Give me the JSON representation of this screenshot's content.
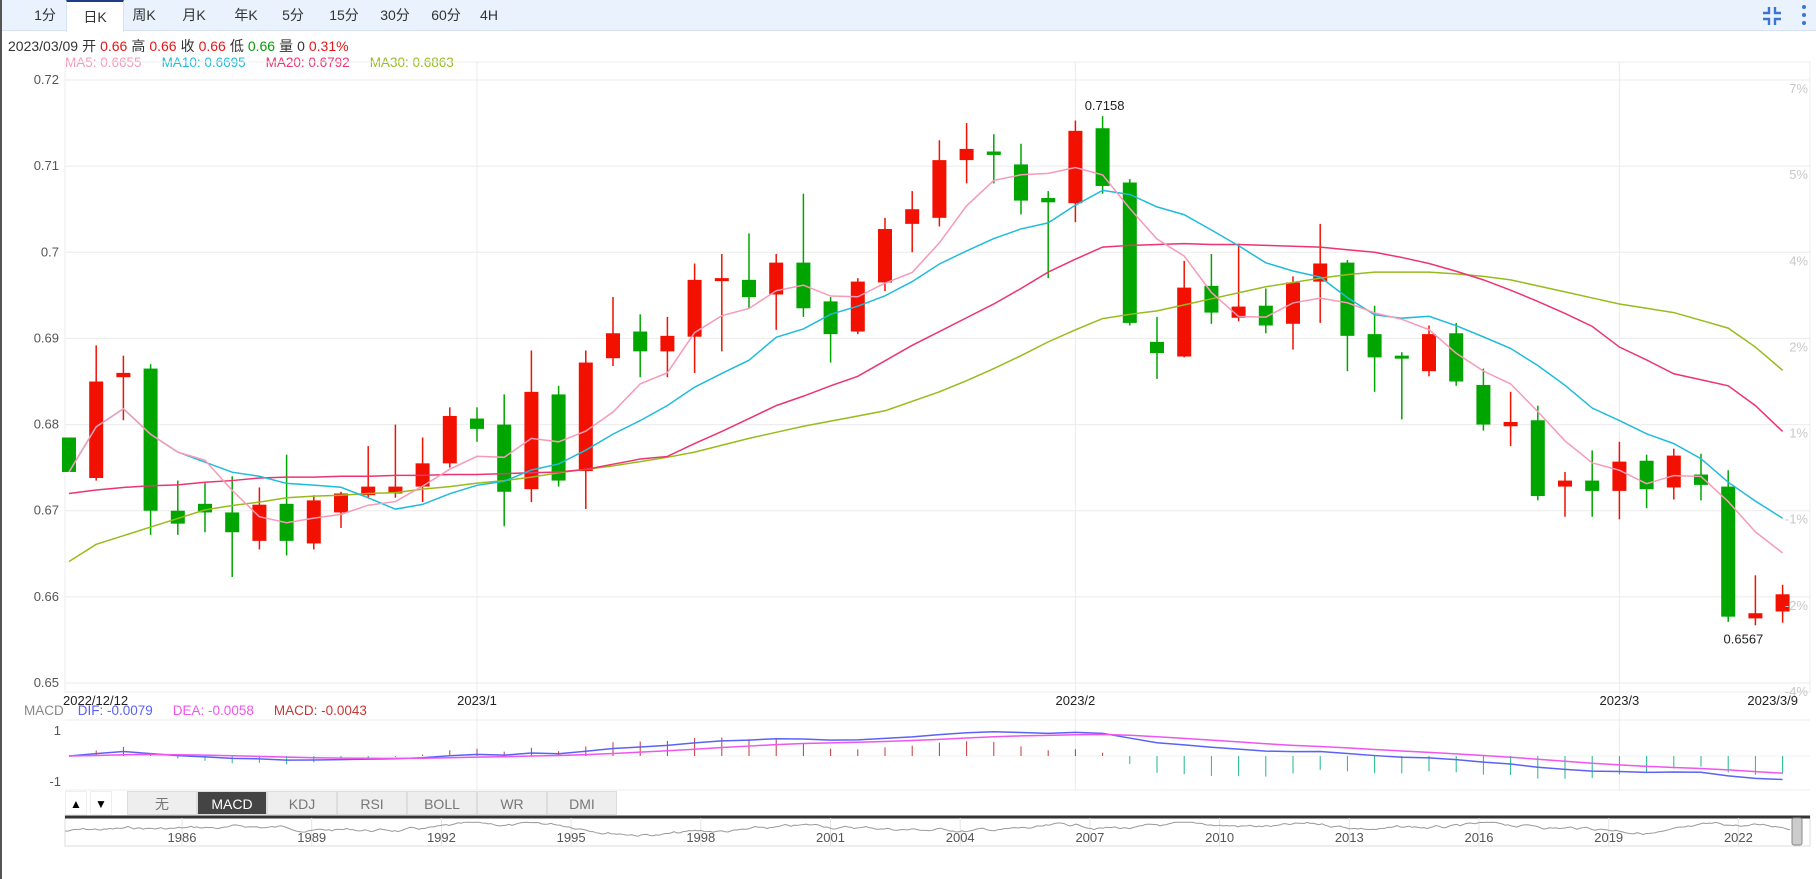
{
  "tabs": [
    {
      "label": "1分"
    },
    {
      "label": "日K",
      "active": true
    },
    {
      "label": "周K"
    },
    {
      "label": "月K"
    },
    {
      "label": "年K"
    },
    {
      "label": "5分"
    },
    {
      "label": "15分"
    },
    {
      "label": "30分"
    },
    {
      "label": "60分"
    },
    {
      "label": "4H"
    }
  ],
  "toolbar": {
    "icons": [
      "compress-icon",
      "more-vertical-icon"
    ]
  },
  "info": {
    "date": "2023/03/09",
    "open_label": "开",
    "open": "0.66",
    "high_label": "高",
    "high": "0.66",
    "close_label": "收",
    "close": "0.66",
    "low_label": "低",
    "low": "0.66",
    "volume_label": "量",
    "volume": "0",
    "change": "0.31%"
  },
  "ma_legend": {
    "ma5": "MA5: 0.6655",
    "ma10": "MA10: 0.6695",
    "ma20": "MA20: 0.6792",
    "ma30": "MA30: 0.6863"
  },
  "colors": {
    "up": "#f21100",
    "down": "#00a500",
    "ma5": "#f79ab8",
    "ma10": "#1fbbdc",
    "ma20": "#ec3470",
    "ma30": "#98bb1c",
    "dif": "#5a63f5",
    "dea": "#ef55ef",
    "macd": "#c83737"
  },
  "chart_data": {
    "type": "candlestick",
    "y_ticks": [
      "0.72",
      "0.71",
      "0.7",
      "0.69",
      "0.68",
      "0.67",
      "0.66",
      "0.65"
    ],
    "y_tick_values": [
      0.72,
      0.71,
      0.7,
      0.69,
      0.68,
      0.67,
      0.66,
      0.65
    ],
    "ylim": [
      0.65,
      0.72
    ],
    "pct_ticks": [
      "7%",
      "5%",
      "4%",
      "2%",
      "1%",
      "-1%",
      "-2%",
      "-4%"
    ],
    "x_labels": [
      {
        "label": "2022/12/12",
        "index": 0
      },
      {
        "label": "2023/1",
        "index": 15
      },
      {
        "label": "2023/2",
        "index": 37
      },
      {
        "label": "2023/3",
        "index": 57
      },
      {
        "label": "2023/3/9",
        "index": 63
      }
    ],
    "ohlc": [
      [
        0.6785,
        0.6785,
        0.6745,
        0.6745
      ],
      [
        0.6738,
        0.6892,
        0.6735,
        0.685
      ],
      [
        0.6855,
        0.688,
        0.6805,
        0.686
      ],
      [
        0.6865,
        0.687,
        0.6672,
        0.67
      ],
      [
        0.67,
        0.6735,
        0.6672,
        0.6685
      ],
      [
        0.6708,
        0.6732,
        0.6675,
        0.6698
      ],
      [
        0.6698,
        0.674,
        0.6623,
        0.6675
      ],
      [
        0.6665,
        0.6727,
        0.6655,
        0.6707
      ],
      [
        0.6708,
        0.6765,
        0.6648,
        0.6665
      ],
      [
        0.6662,
        0.6718,
        0.6655,
        0.6712
      ],
      [
        0.6698,
        0.6722,
        0.668,
        0.672
      ],
      [
        0.6718,
        0.6775,
        0.6715,
        0.6728
      ],
      [
        0.672,
        0.68,
        0.6715,
        0.6728
      ],
      [
        0.6728,
        0.6785,
        0.671,
        0.6755
      ],
      [
        0.6755,
        0.682,
        0.675,
        0.681
      ],
      [
        0.6807,
        0.682,
        0.678,
        0.6795
      ],
      [
        0.68,
        0.6835,
        0.6682,
        0.6722
      ],
      [
        0.6725,
        0.6886,
        0.671,
        0.6838
      ],
      [
        0.6835,
        0.6845,
        0.6728,
        0.6735
      ],
      [
        0.6746,
        0.6886,
        0.6702,
        0.6872
      ],
      [
        0.6877,
        0.6948,
        0.6868,
        0.6906
      ],
      [
        0.6908,
        0.6928,
        0.6855,
        0.6885
      ],
      [
        0.6885,
        0.6925,
        0.6855,
        0.6903
      ],
      [
        0.6902,
        0.6987,
        0.686,
        0.6968
      ],
      [
        0.6968,
        0.6998,
        0.6885,
        0.697
      ],
      [
        0.6968,
        0.7022,
        0.6935,
        0.6948
      ],
      [
        0.6951,
        0.6998,
        0.691,
        0.6988
      ],
      [
        0.6988,
        0.7068,
        0.6925,
        0.6935
      ],
      [
        0.6943,
        0.6948,
        0.6872,
        0.6905
      ],
      [
        0.6908,
        0.697,
        0.6905,
        0.6966
      ],
      [
        0.6965,
        0.704,
        0.6955,
        0.7027
      ],
      [
        0.7033,
        0.7071,
        0.7,
        0.705
      ],
      [
        0.704,
        0.713,
        0.703,
        0.7107
      ],
      [
        0.7107,
        0.715,
        0.708,
        0.712
      ],
      [
        0.7117,
        0.7137,
        0.708,
        0.7113
      ],
      [
        0.7102,
        0.7126,
        0.7044,
        0.706
      ],
      [
        0.7063,
        0.7071,
        0.697,
        0.7058
      ],
      [
        0.7057,
        0.7153,
        0.7035,
        0.7141
      ],
      [
        0.7144,
        0.7158,
        0.7068,
        0.7077
      ],
      [
        0.7081,
        0.7085,
        0.6915,
        0.6918
      ],
      [
        0.6896,
        0.6925,
        0.6853,
        0.6883
      ],
      [
        0.6879,
        0.699,
        0.6878,
        0.6959
      ],
      [
        0.6961,
        0.6998,
        0.6917,
        0.693
      ],
      [
        0.6924,
        0.701,
        0.692,
        0.6937
      ],
      [
        0.6938,
        0.6958,
        0.6906,
        0.6915
      ],
      [
        0.6917,
        0.6972,
        0.6887,
        0.6965
      ],
      [
        0.6966,
        0.7033,
        0.6918,
        0.6987
      ],
      [
        0.6988,
        0.6991,
        0.6862,
        0.6903
      ],
      [
        0.6905,
        0.6938,
        0.6838,
        0.6878
      ],
      [
        0.688,
        0.6884,
        0.6806,
        0.6878
      ],
      [
        0.6862,
        0.6915,
        0.6856,
        0.6905
      ],
      [
        0.6906,
        0.6918,
        0.6845,
        0.685
      ],
      [
        0.6846,
        0.6865,
        0.6793,
        0.68
      ],
      [
        0.6798,
        0.6838,
        0.6775,
        0.6803
      ],
      [
        0.6805,
        0.6822,
        0.6712,
        0.6717
      ],
      [
        0.6728,
        0.6745,
        0.6693,
        0.6735
      ],
      [
        0.6735,
        0.677,
        0.6693,
        0.6723
      ],
      [
        0.6723,
        0.678,
        0.669,
        0.6757
      ],
      [
        0.6758,
        0.6765,
        0.6703,
        0.6725
      ],
      [
        0.6727,
        0.6772,
        0.6713,
        0.6764
      ],
      [
        0.6742,
        0.6766,
        0.6712,
        0.673
      ],
      [
        0.6728,
        0.6747,
        0.6571,
        0.6577
      ],
      [
        0.6575,
        0.6625,
        0.6567,
        0.6581
      ],
      [
        0.6583,
        0.6614,
        0.657,
        0.6603
      ]
    ],
    "ma20": [
      0.672,
      0.6724,
      0.6727,
      0.6729,
      0.673,
      0.6733,
      0.6735,
      0.6738,
      0.6739,
      0.6739,
      0.674,
      0.674,
      0.6741,
      0.6741,
      0.6742,
      0.6742,
      0.6743,
      0.6744,
      0.6745,
      0.6748,
      0.6754,
      0.676,
      0.6763,
      0.6778,
      0.6792,
      0.6807,
      0.6822,
      0.6833,
      0.6845,
      0.6856,
      0.6874,
      0.6892,
      0.6908,
      0.6924,
      0.694,
      0.6958,
      0.6977,
      0.6992,
      0.7006,
      0.7008,
      0.7009,
      0.701,
      0.7009,
      0.7009,
      0.7008,
      0.7007,
      0.7006,
      0.7003,
      0.7,
      0.6994,
      0.6987,
      0.6978,
      0.6968,
      0.6956,
      0.6943,
      0.6929,
      0.6914,
      0.689,
      0.6875,
      0.6859,
      0.6852,
      0.6845,
      0.6822,
      0.6792
    ],
    "ma30": [
      0.6641,
      0.6661,
      0.6671,
      0.6681,
      0.6691,
      0.6701,
      0.6706,
      0.671,
      0.6715,
      0.6717,
      0.6718,
      0.672,
      0.6721,
      0.6725,
      0.6728,
      0.6732,
      0.6735,
      0.6739,
      0.6744,
      0.6748,
      0.6752,
      0.6757,
      0.6762,
      0.6768,
      0.6776,
      0.6784,
      0.6791,
      0.6798,
      0.6804,
      0.681,
      0.6816,
      0.6827,
      0.6838,
      0.6851,
      0.6865,
      0.688,
      0.6896,
      0.691,
      0.6923,
      0.6928,
      0.6932,
      0.6939,
      0.6946,
      0.6953,
      0.696,
      0.6965,
      0.697,
      0.6974,
      0.6977,
      0.6977,
      0.6977,
      0.6975,
      0.6972,
      0.6968,
      0.6961,
      0.6954,
      0.6947,
      0.694,
      0.6935,
      0.693,
      0.6921,
      0.6912,
      0.689,
      0.6863
    ],
    "annotations": {
      "high": "0.7158",
      "high_index": 38,
      "low": "0.6567",
      "low_index": 62
    }
  },
  "macd": {
    "name": "MACD",
    "dif": "DIF: -0.0079",
    "dea": "DEA: -0.0058",
    "macd": "MACD: -0.0043",
    "ticks": [
      "1",
      "-1"
    ]
  },
  "indicators": {
    "up": "▲",
    "down": "▼",
    "tabs": [
      {
        "label": "无"
      },
      {
        "label": "MACD",
        "active": true
      },
      {
        "label": "KDJ"
      },
      {
        "label": "RSI"
      },
      {
        "label": "BOLL"
      },
      {
        "label": "WR"
      },
      {
        "label": "DMI"
      }
    ]
  },
  "navigator": {
    "years": [
      "1986",
      "1989",
      "1992",
      "1995",
      "1998",
      "2001",
      "2004",
      "2007",
      "2010",
      "2013",
      "2016",
      "2019",
      "2022"
    ]
  }
}
